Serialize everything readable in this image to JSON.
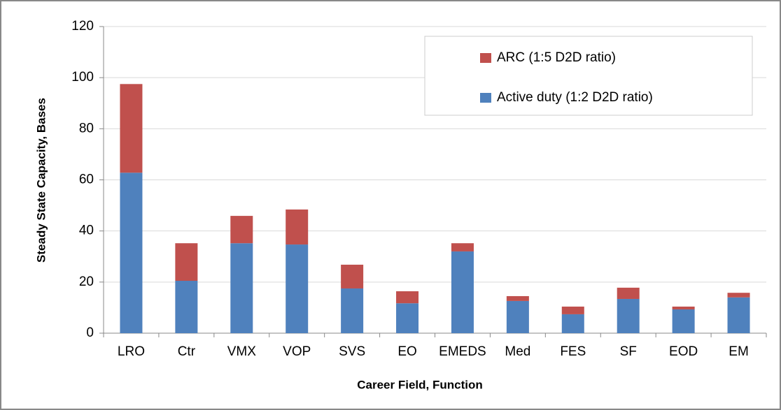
{
  "chart_data": {
    "type": "stacked_bar",
    "categories": [
      "LRO",
      "Ctr",
      "VMX",
      "VOP",
      "SVS",
      "EO",
      "EMEDS",
      "Med",
      "FES",
      "SF",
      "EOD",
      "EM"
    ],
    "series": [
      {
        "name": "Active duty (1:2 D2D ratio)",
        "color": "#4f81bd",
        "values": [
          62.8,
          20.5,
          35.2,
          34.7,
          17.5,
          11.7,
          32,
          12.6,
          7.4,
          13.4,
          9.3,
          14
        ]
      },
      {
        "name": "ARC (1:5 D2D ratio)",
        "color": "#c0504d",
        "values": [
          34.7,
          14.7,
          10.7,
          13.7,
          9.3,
          4.7,
          3.2,
          1.9,
          3,
          4.4,
          1.1,
          1.8
        ]
      }
    ],
    "xlabel": "Career Field, Function",
    "ylabel": "Steady State Capacity, Bases",
    "ylim": [
      0,
      120
    ],
    "yticks": [
      0,
      20,
      40,
      60,
      80,
      100,
      120
    ],
    "grid": true,
    "legend": "upper right"
  }
}
